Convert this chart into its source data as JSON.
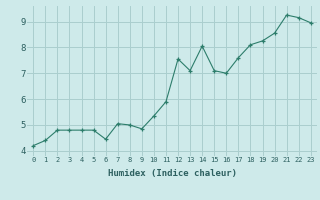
{
  "x": [
    0,
    1,
    2,
    3,
    4,
    5,
    6,
    7,
    8,
    9,
    10,
    11,
    12,
    13,
    14,
    15,
    16,
    17,
    18,
    19,
    20,
    21,
    22,
    23
  ],
  "y": [
    4.2,
    4.4,
    4.8,
    4.8,
    4.8,
    4.8,
    4.45,
    5.05,
    5.0,
    4.85,
    5.35,
    5.9,
    7.55,
    7.1,
    8.05,
    7.1,
    7.0,
    7.6,
    8.1,
    8.25,
    8.55,
    9.25,
    9.15,
    8.95
  ],
  "xlabel": "Humidex (Indice chaleur)",
  "bg_color": "#ceeaea",
  "grid_color": "#aacece",
  "line_color": "#2d7d6b",
  "marker_color": "#2d7d6b",
  "ylim": [
    3.8,
    9.6
  ],
  "xlim": [
    -0.5,
    23.5
  ],
  "yticks": [
    4,
    5,
    6,
    7,
    8,
    9
  ],
  "xticks": [
    0,
    1,
    2,
    3,
    4,
    5,
    6,
    7,
    8,
    9,
    10,
    11,
    12,
    13,
    14,
    15,
    16,
    17,
    18,
    19,
    20,
    21,
    22,
    23
  ]
}
